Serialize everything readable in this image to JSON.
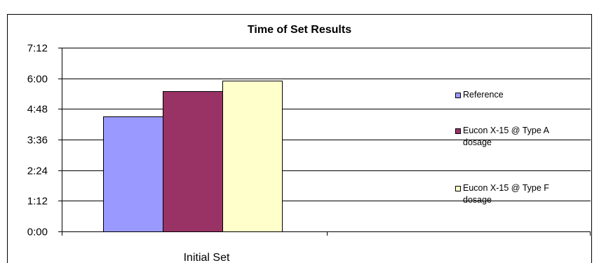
{
  "chart_data": {
    "type": "bar",
    "title": "Time of Set Results",
    "xlabel": "",
    "ylabel": "",
    "categories": [
      "Initial Set"
    ],
    "y_ticks": [
      "0:00",
      "1:12",
      "2:24",
      "3:36",
      "4:48",
      "6:00",
      "7:12"
    ],
    "y_unit": "minutes",
    "ylim": [
      0,
      432
    ],
    "grid": true,
    "legend_position": "right",
    "series": [
      {
        "name": "Reference",
        "legend_lines": [
          "Reference"
        ],
        "values": [
          270
        ],
        "color": "#9999ff"
      },
      {
        "name": "Eucon X-15 @ Type A dosage",
        "legend_lines": [
          "Eucon X-15 @ Type A",
          "dosage"
        ],
        "values": [
          330
        ],
        "color": "#993366"
      },
      {
        "name": "Eucon X-15 @ Type F dosage",
        "legend_lines": [
          "Eucon X-15 @ Type F",
          "dosage"
        ],
        "values": [
          354
        ],
        "color": "#ffffcc"
      }
    ]
  }
}
